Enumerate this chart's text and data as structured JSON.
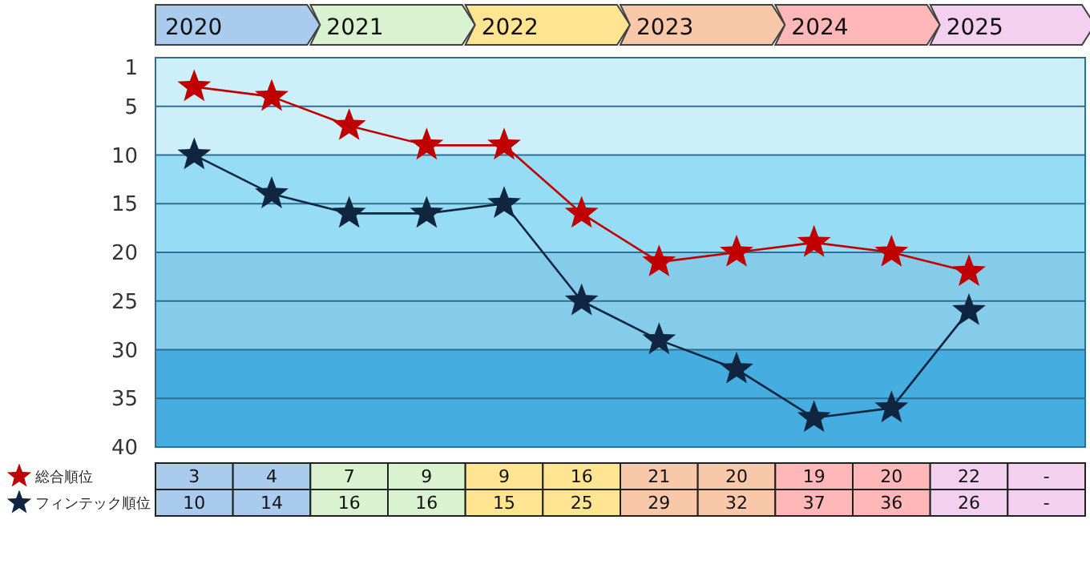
{
  "chart_data": {
    "type": "line",
    "categories": [
      "2020",
      null,
      "2021",
      null,
      "2022",
      null,
      "2023",
      null,
      "2024",
      null,
      "2025",
      null
    ],
    "series": [
      {
        "name": "総合順位",
        "color": "#c00000",
        "values": [
          3,
          4,
          7,
          9,
          9,
          16,
          21,
          20,
          19,
          20,
          22,
          null
        ],
        "value_labels": [
          "3",
          "4",
          "7",
          "9",
          "9",
          "16",
          "21",
          "20",
          "19",
          "20",
          "22",
          "-"
        ]
      },
      {
        "name": "フィンテック順位",
        "color": "#10253f",
        "values": [
          10,
          14,
          16,
          16,
          15,
          25,
          29,
          32,
          37,
          36,
          26,
          null
        ],
        "value_labels": [
          "10",
          "14",
          "16",
          "16",
          "15",
          "25",
          "29",
          "32",
          "37",
          "36",
          "26",
          "-"
        ]
      }
    ],
    "ylim": [
      40,
      0
    ],
    "yticks": [
      1,
      5,
      10,
      15,
      20,
      25,
      30,
      35,
      40
    ],
    "grid": "y",
    "marker": "star",
    "legend": "bottom left",
    "bands": [
      {
        "axis": "y",
        "from": 0,
        "to": 10,
        "color": "#cdeffa"
      },
      {
        "axis": "y",
        "from": 10,
        "to": 20,
        "color": "#97dcf5"
      },
      {
        "axis": "y",
        "from": 20,
        "to": 30,
        "color": "#85cbea"
      },
      {
        "axis": "y",
        "from": 30,
        "to": 40,
        "color": "#45addf"
      }
    ]
  }
}
